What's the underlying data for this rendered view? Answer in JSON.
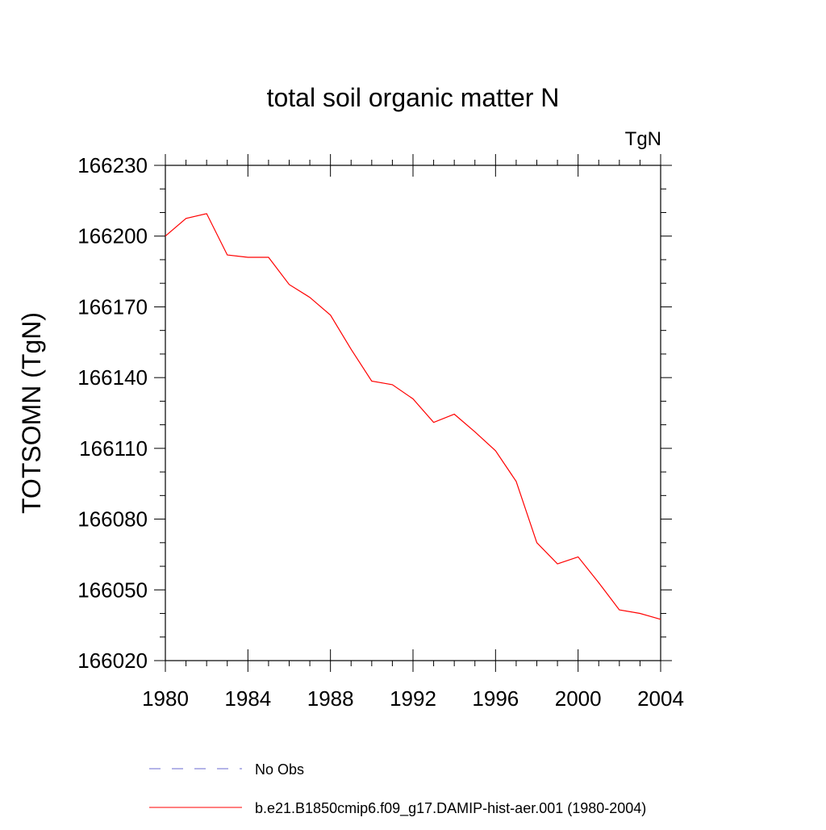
{
  "chart_data": {
    "type": "line",
    "title": "total soil organic matter N",
    "units_label": "TgN",
    "ylabel": "TOTSOMN  (TgN)",
    "xlabel": "",
    "xlim": [
      1980,
      2004
    ],
    "ylim": [
      166020,
      166230
    ],
    "x_ticks": [
      1980,
      1984,
      1988,
      1992,
      1996,
      2000,
      2004
    ],
    "y_ticks": [
      166020,
      166050,
      166080,
      166110,
      166140,
      166170,
      166200,
      166230
    ],
    "x_tick_labels": [
      "1980",
      "1984",
      "1988",
      "1992",
      "1996",
      "2000",
      "2004"
    ],
    "y_tick_labels": [
      "166020",
      "166050",
      "166080",
      "166110",
      "166140",
      "166170",
      "166200",
      "166230"
    ],
    "grid": false,
    "legend_position": "bottom",
    "series": [
      {
        "name": "No Obs",
        "color": "#6a6ad0",
        "dash": "dashed",
        "x": [],
        "y": []
      },
      {
        "name": "b.e21.B1850cmip6.f09_g17.DAMIP-hist-aer.001 (1980-2004)",
        "color": "#ff0000",
        "dash": "solid",
        "x": [
          1980,
          1981,
          1982,
          1983,
          1984,
          1985,
          1986,
          1987,
          1988,
          1989,
          1990,
          1991,
          1992,
          1993,
          1994,
          1995,
          1996,
          1997,
          1998,
          1999,
          2000,
          2001,
          2002,
          2003,
          2004
        ],
        "y": [
          166200,
          166207.5,
          166209.5,
          166192,
          166191,
          166191,
          166179.5,
          166174,
          166166.5,
          166152,
          166138.5,
          166137,
          166131,
          166121,
          166124.5,
          166117,
          166109,
          166096,
          166070,
          166061,
          166064,
          166053,
          166041.5,
          166040,
          166037.5
        ]
      }
    ]
  }
}
